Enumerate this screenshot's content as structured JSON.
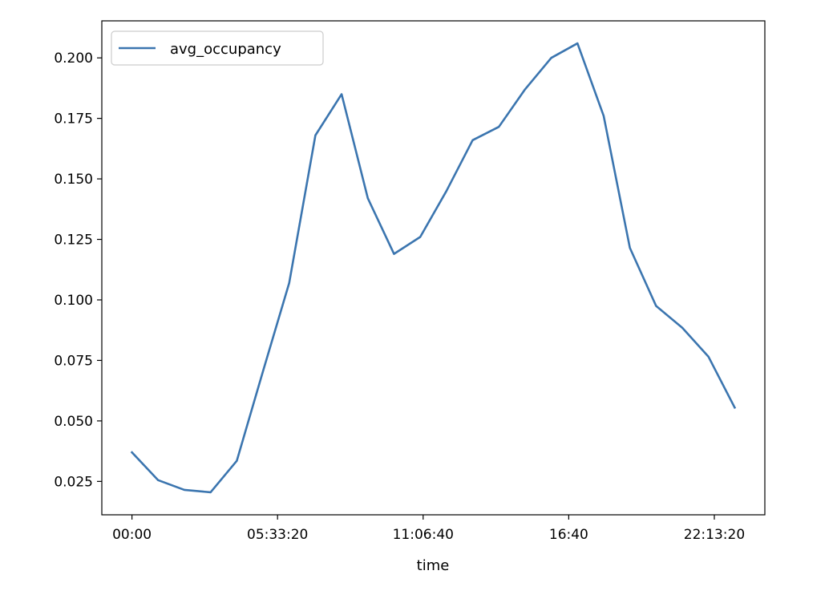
{
  "chart_data": {
    "type": "line",
    "xlabel": "time",
    "ylabel": "",
    "x_units": "seconds",
    "x": [
      0,
      3600,
      7200,
      10800,
      14400,
      18000,
      21600,
      25200,
      28800,
      32400,
      36000,
      39600,
      43200,
      46800,
      50400,
      54000,
      57600,
      61200,
      64800,
      68400,
      72000,
      75600,
      79200,
      82800
    ],
    "series": [
      {
        "name": "avg_occupancy",
        "color": "#3b75af",
        "values": [
          0.037,
          0.0255,
          0.0215,
          0.0205,
          0.0335,
          0.0705,
          0.107,
          0.168,
          0.185,
          0.142,
          0.119,
          0.126,
          0.145,
          0.166,
          0.1715,
          0.187,
          0.2,
          0.206,
          0.176,
          0.1215,
          0.0975,
          0.0885,
          0.0765,
          0.0555
        ]
      }
    ],
    "x_ticks": [
      0,
      20000,
      40000,
      60000,
      80000
    ],
    "x_tick_labels": [
      "00:00",
      "05:33:20",
      "11:06:40",
      "16:40",
      "22:13:20"
    ],
    "y_ticks": [
      0.025,
      0.05,
      0.075,
      0.1,
      0.125,
      0.15,
      0.175,
      0.2
    ],
    "y_tick_labels": [
      "0.025",
      "0.050",
      "0.075",
      "0.100",
      "0.125",
      "0.150",
      "0.175",
      "0.200"
    ],
    "xlim": [
      -4140,
      86940
    ],
    "ylim": [
      0.0112,
      0.2153
    ],
    "grid": false,
    "legend_position": "upper-left"
  }
}
